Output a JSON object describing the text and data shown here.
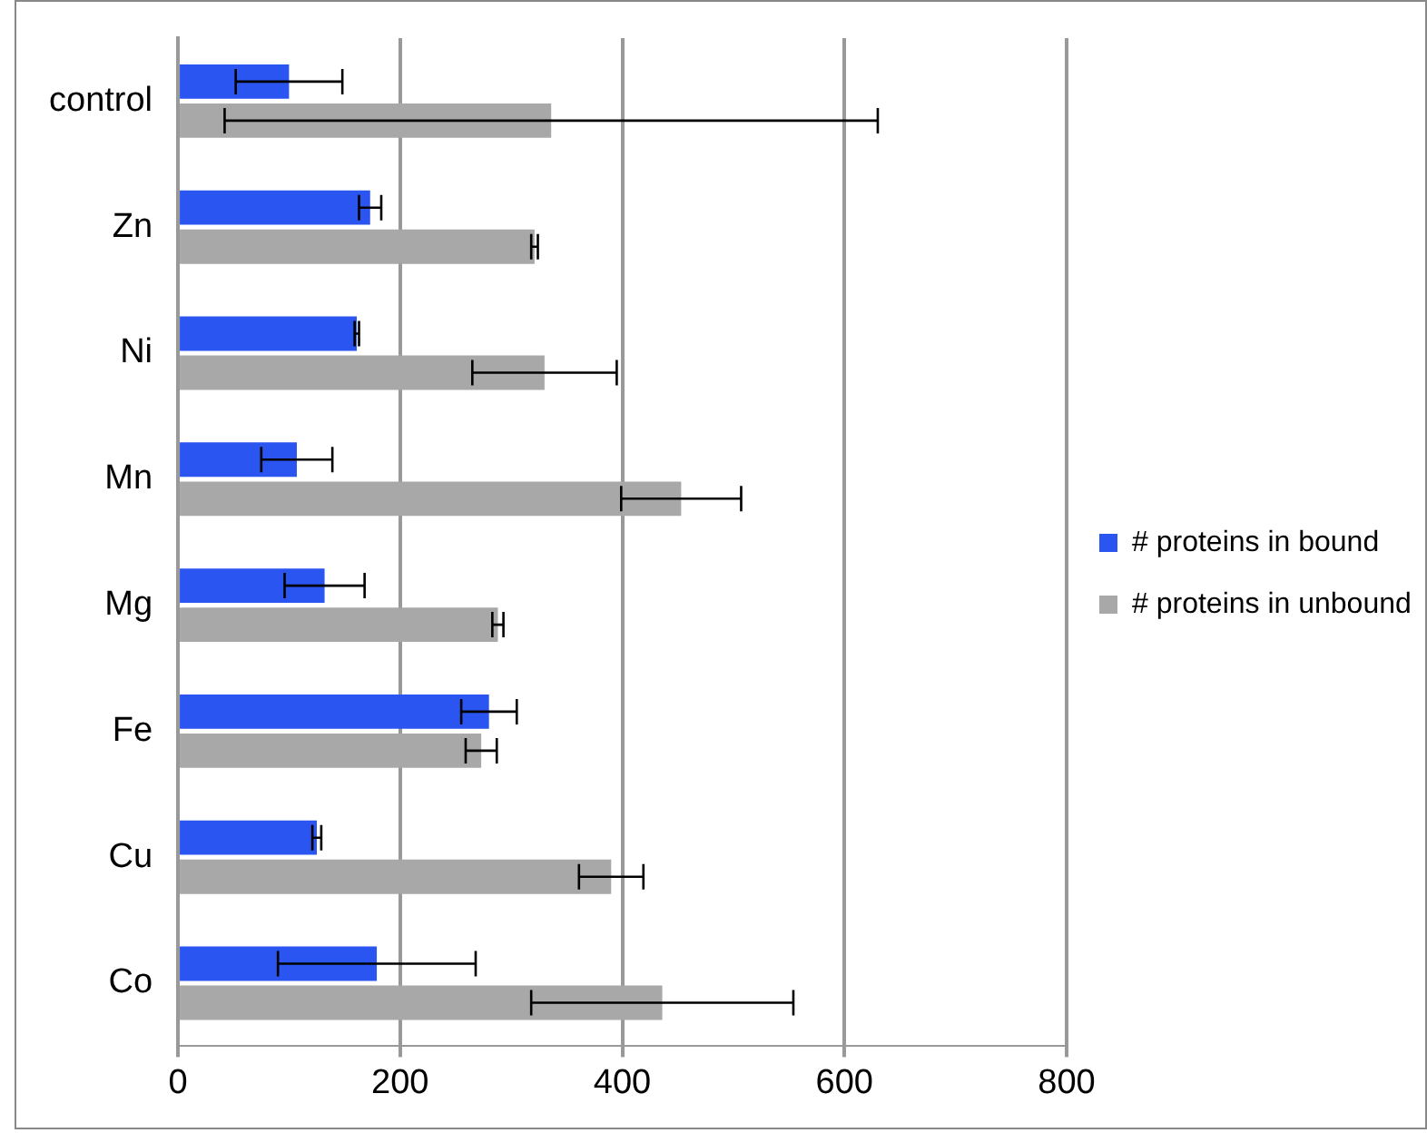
{
  "chart_data": {
    "type": "bar",
    "orientation": "horizontal",
    "categories": [
      "control",
      "Zn",
      "Ni",
      "Mn",
      "Mg",
      "Fe",
      "Cu",
      "Co"
    ],
    "series": [
      {
        "name": "# proteins in bound",
        "color": "#2b55f0",
        "values": [
          100,
          173,
          161,
          107,
          132,
          280,
          125,
          179
        ],
        "errors": [
          48,
          10,
          2,
          32,
          36,
          25,
          4,
          89
        ]
      },
      {
        "name": "# proteins in unbound",
        "color": "#a8a8a8",
        "values": [
          336,
          321,
          330,
          453,
          288,
          273,
          390,
          436
        ],
        "errors": [
          294,
          3,
          65,
          54,
          5,
          14,
          29,
          118
        ]
      }
    ],
    "xlim": [
      0,
      800
    ],
    "xticks": [
      0,
      200,
      400,
      600,
      800
    ],
    "grid": "x",
    "legend": "right"
  }
}
